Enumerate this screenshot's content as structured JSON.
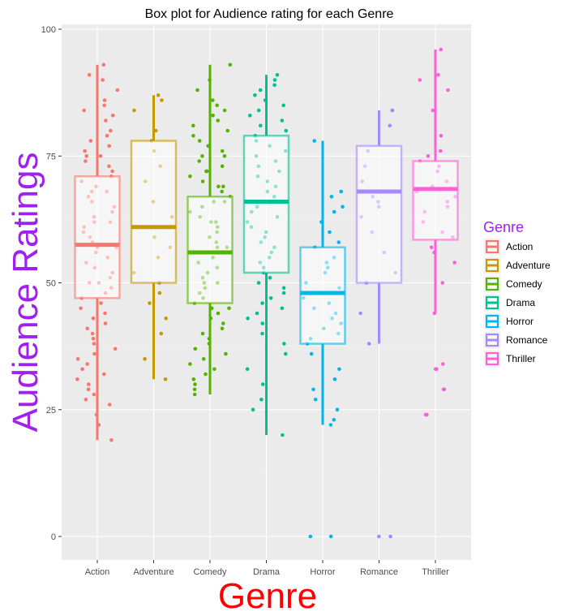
{
  "chart_data": {
    "type": "box",
    "title": "Box plot for Audience rating for each Genre",
    "xlabel": "Genre",
    "ylabel": "Audience Ratings",
    "ylim": [
      -4,
      105
    ],
    "yticks": [
      0,
      25,
      50,
      75,
      100
    ],
    "grid": true,
    "legend": {
      "title": "Genre",
      "position": "right"
    },
    "categories": [
      "Action",
      "Adventure",
      "Comedy",
      "Drama",
      "Horror",
      "Romance",
      "Thriller"
    ],
    "colors": [
      "#f8766d",
      "#c49a00",
      "#53b400",
      "#00c094",
      "#00b6eb",
      "#a58aff",
      "#fb61d7"
    ],
    "boxes": [
      {
        "genre": "Action",
        "q1": 47,
        "median": 57.5,
        "q3": 71,
        "whisker_low": 19,
        "whisker_high": 93
      },
      {
        "genre": "Adventure",
        "q1": 50,
        "median": 61,
        "q3": 78,
        "whisker_low": 31,
        "whisker_high": 87
      },
      {
        "genre": "Comedy",
        "q1": 46,
        "median": 56,
        "q3": 67,
        "whisker_low": 28,
        "whisker_high": 93
      },
      {
        "genre": "Drama",
        "q1": 52,
        "median": 66,
        "q3": 79,
        "whisker_low": 20,
        "whisker_high": 91
      },
      {
        "genre": "Horror",
        "q1": 38,
        "median": 48,
        "q3": 57,
        "whisker_low": 22,
        "whisker_high": 78
      },
      {
        "genre": "Romance",
        "q1": 50,
        "median": 68,
        "q3": 77,
        "whisker_low": 38,
        "whisker_high": 84
      },
      {
        "genre": "Thriller",
        "q1": 58.5,
        "median": 68.5,
        "q3": 74,
        "whisker_low": 44,
        "whisker_high": 96
      }
    ],
    "points": [
      [
        93,
        91,
        90,
        88,
        86,
        85,
        84,
        83,
        82,
        80,
        79,
        78,
        77,
        76,
        75,
        75,
        74,
        73,
        72,
        71,
        70,
        69,
        68,
        68,
        67,
        66,
        65,
        64,
        63,
        62,
        62,
        61,
        60,
        59,
        58,
        57,
        57,
        56,
        55,
        54,
        53,
        52,
        51,
        50,
        50,
        49,
        48,
        47,
        46,
        45,
        44,
        43,
        42,
        41,
        40,
        39,
        38,
        37,
        36,
        35,
        34,
        33,
        32,
        31,
        30,
        29,
        28,
        27,
        26,
        24,
        22,
        19
      ],
      [
        87,
        86,
        84,
        80,
        78,
        76,
        73,
        70,
        66,
        63,
        61,
        59,
        57,
        55,
        52,
        50,
        48,
        46,
        43,
        40,
        35,
        31
      ],
      [
        93,
        90,
        88,
        86,
        85,
        84,
        83,
        82,
        81,
        80,
        79,
        78,
        77,
        76,
        75,
        75,
        74,
        73,
        72,
        72,
        71,
        70,
        69,
        69,
        68,
        67,
        66,
        66,
        65,
        64,
        63,
        62,
        62,
        61,
        60,
        59,
        58,
        57,
        57,
        56,
        55,
        54,
        53,
        52,
        51,
        50,
        50,
        49,
        48,
        47,
        46,
        45,
        45,
        44,
        43,
        42,
        41,
        40,
        39,
        38,
        37,
        36,
        35,
        34,
        33,
        32,
        31,
        30,
        29,
        28
      ],
      [
        91,
        90,
        89,
        88,
        87,
        86,
        85,
        84,
        83,
        82,
        81,
        80,
        79,
        78,
        77,
        76,
        75,
        74,
        73,
        72,
        71,
        70,
        69,
        68,
        67,
        66,
        65,
        64,
        63,
        62,
        61,
        60,
        59,
        58,
        57,
        56,
        55,
        54,
        53,
        52,
        51,
        50,
        49,
        48,
        47,
        46,
        45,
        44,
        43,
        42,
        40,
        38,
        36,
        33,
        30,
        27,
        25,
        20
      ],
      [
        78,
        68,
        67,
        65,
        64,
        62,
        60,
        58,
        57,
        55,
        54,
        53,
        52,
        50,
        49,
        48,
        47,
        46,
        45,
        44,
        43,
        42,
        41,
        40,
        39,
        38,
        36,
        33,
        31,
        29,
        27,
        25,
        23,
        22,
        0,
        0
      ],
      [
        84,
        84,
        81,
        76,
        73,
        70,
        68,
        67,
        66,
        65,
        63,
        60,
        56,
        52,
        50,
        44,
        38,
        0,
        0
      ],
      [
        96,
        91,
        90,
        88,
        84,
        79,
        76,
        75,
        74,
        73,
        72,
        70,
        69,
        68,
        67,
        66,
        65,
        64,
        62,
        60,
        59,
        57,
        56,
        54,
        50,
        44,
        34,
        33,
        33,
        29,
        29,
        24,
        24
      ]
    ]
  }
}
